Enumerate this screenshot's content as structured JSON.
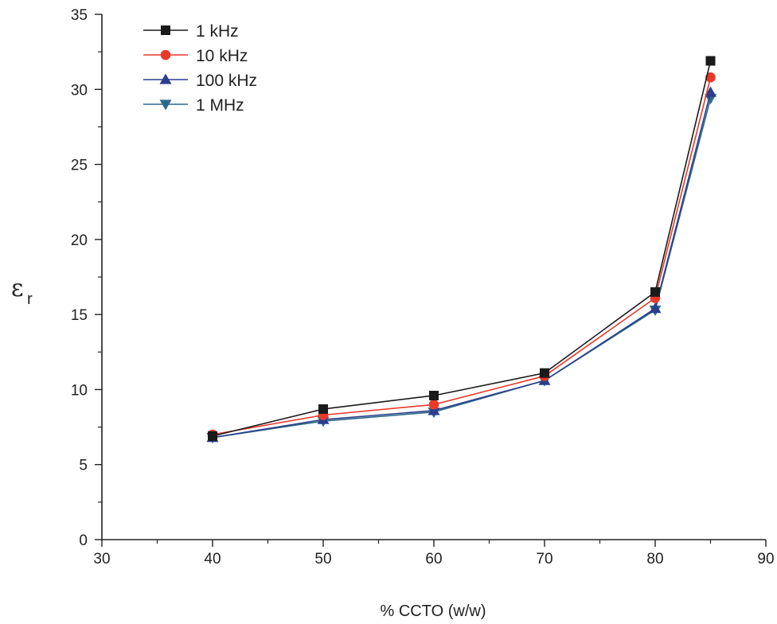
{
  "chart_data": {
    "type": "line",
    "title": "",
    "xlabel": "% CCTO (w/w)",
    "ylabel": "εr",
    "ylabel_main": "ε",
    "ylabel_sub": "r",
    "xlim": [
      30,
      90
    ],
    "ylim": [
      0,
      35
    ],
    "x_ticks": [
      30,
      40,
      50,
      60,
      70,
      80,
      90
    ],
    "y_ticks": [
      0,
      5,
      10,
      15,
      20,
      25,
      30,
      35
    ],
    "grid": false,
    "legend_position": "top-left",
    "x": [
      40,
      50,
      60,
      70,
      80,
      85
    ],
    "series": [
      {
        "name": "1 kHz",
        "values": [
          6.9,
          8.7,
          9.6,
          11.1,
          16.5,
          31.9
        ],
        "color": "#1a1a1a",
        "marker": "square"
      },
      {
        "name": "10 kHz",
        "values": [
          7.0,
          8.3,
          9.0,
          10.9,
          16.1,
          30.8
        ],
        "color": "#e8392a",
        "marker": "circle"
      },
      {
        "name": "100 kHz",
        "values": [
          6.8,
          8.0,
          8.6,
          10.6,
          15.4,
          29.8
        ],
        "color": "#2b3f8c",
        "marker": "triangle-up"
      },
      {
        "name": "1 MHz",
        "values": [
          6.8,
          7.9,
          8.5,
          10.6,
          15.3,
          29.4
        ],
        "color": "#2c6a8a",
        "marker": "triangle-down"
      }
    ]
  }
}
